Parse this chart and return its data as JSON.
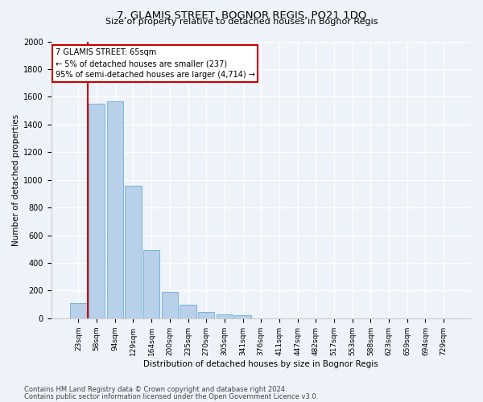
{
  "title": "7, GLAMIS STREET, BOGNOR REGIS, PO21 1DQ",
  "subtitle": "Size of property relative to detached houses in Bognor Regis",
  "xlabel": "Distribution of detached houses by size in Bognor Regis",
  "ylabel": "Number of detached properties",
  "bar_labels": [
    "23sqm",
    "58sqm",
    "94sqm",
    "129sqm",
    "164sqm",
    "200sqm",
    "235sqm",
    "270sqm",
    "305sqm",
    "341sqm",
    "376sqm",
    "411sqm",
    "447sqm",
    "482sqm",
    "517sqm",
    "553sqm",
    "588sqm",
    "623sqm",
    "659sqm",
    "694sqm",
    "729sqm"
  ],
  "bar_values": [
    110,
    1550,
    1570,
    955,
    490,
    190,
    95,
    45,
    30,
    20,
    0,
    0,
    0,
    0,
    0,
    0,
    0,
    0,
    0,
    0,
    0
  ],
  "bar_color": "#b8d0ea",
  "bar_edge_color": "#6aaed6",
  "annotation_line1": "7 GLAMIS STREET: 65sqm",
  "annotation_line2": "← 5% of detached houses are smaller (237)",
  "annotation_line3": "95% of semi-detached houses are larger (4,714) →",
  "annotation_box_color": "#ffffff",
  "annotation_box_edge_color": "#cc0000",
  "property_line_color": "#cc0000",
  "ylim": [
    0,
    2000
  ],
  "yticks": [
    0,
    200,
    400,
    600,
    800,
    1000,
    1200,
    1400,
    1600,
    1800,
    2000
  ],
  "footnote1": "Contains HM Land Registry data © Crown copyright and database right 2024.",
  "footnote2": "Contains public sector information licensed under the Open Government Licence v3.0.",
  "bg_color": "#eef2f9",
  "grid_color": "#ffffff"
}
